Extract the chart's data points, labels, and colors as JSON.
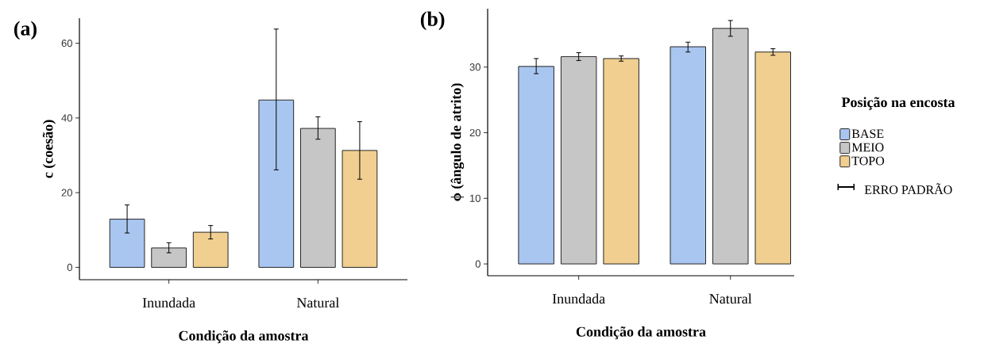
{
  "chart_data": [
    {
      "type": "bar",
      "title": "(a)",
      "xlabel": "Condição da amostra",
      "ylabel": "c (coesão)",
      "categories": [
        "Inundada",
        "Natural"
      ],
      "ylim": [
        -3.3,
        66.7
      ],
      "yticks": [
        0,
        20,
        40,
        60
      ],
      "series": [
        {
          "color": "#a9c6f0",
          "values": [
            12.9,
            44.8
          ],
          "errors": [
            [
              9.2,
              16.7
            ],
            [
              26.1,
              63.8
            ]
          ]
        },
        {
          "color": "#c6c6c6",
          "values": [
            5.2,
            37.2
          ],
          "errors": [
            [
              3.9,
              6.6
            ],
            [
              34.3,
              40.3
            ]
          ]
        },
        {
          "color": "#f0cf90",
          "values": [
            9.4,
            31.3
          ],
          "errors": [
            [
              7.6,
              11.2
            ],
            [
              23.6,
              39.0
            ]
          ]
        }
      ]
    },
    {
      "type": "bar",
      "title": "(b)",
      "xlabel": "Condição da amostra",
      "ylabel": "ϕ (ângulo de atrito)",
      "categories": [
        "Inundada",
        "Natural"
      ],
      "ylim": [
        -1.8,
        38.9
      ],
      "yticks": [
        0,
        10,
        20,
        30
      ],
      "legend": "right",
      "legend_title": "Posição na encosta",
      "annotations": [
        "ERRO PADRÃO"
      ],
      "series": [
        {
          "name": "BASE",
          "color": "#a9c6f0",
          "values": [
            30.1,
            33.1
          ],
          "errors": [
            [
              29.0,
              31.3
            ],
            [
              32.3,
              33.8
            ]
          ]
        },
        {
          "name": "MEIO",
          "color": "#c6c6c6",
          "values": [
            31.6,
            35.9
          ],
          "errors": [
            [
              31.0,
              32.2
            ],
            [
              34.7,
              37.1
            ]
          ]
        },
        {
          "name": "TOPO",
          "color": "#f0cf90",
          "values": [
            31.3,
            32.3
          ],
          "errors": [
            [
              30.9,
              31.7
            ],
            [
              31.8,
              32.8
            ]
          ]
        }
      ]
    }
  ]
}
